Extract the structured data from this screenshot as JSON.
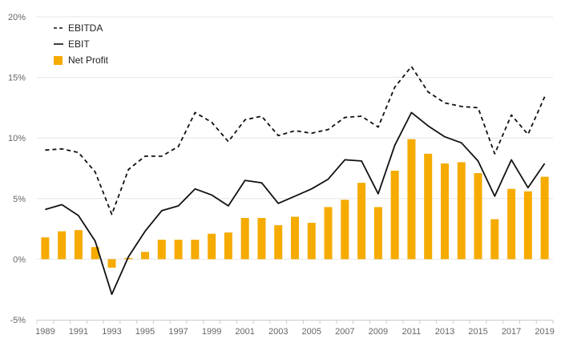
{
  "chart_data": {
    "type": "bar",
    "x": [
      1989,
      1990,
      1991,
      1992,
      1993,
      1994,
      1995,
      1996,
      1997,
      1998,
      1999,
      2000,
      2001,
      2002,
      2003,
      2004,
      2005,
      2006,
      2007,
      2008,
      2009,
      2010,
      2011,
      2012,
      2013,
      2014,
      2015,
      2016,
      2017,
      2018,
      2019
    ],
    "x_tick_labels": [
      "1989",
      "1991",
      "1993",
      "1995",
      "1997",
      "1999",
      "2001",
      "2003",
      "2005",
      "2007",
      "2009",
      "2011",
      "2013",
      "2015",
      "2017",
      "2019"
    ],
    "y_tick_labels": [
      "20%",
      "15%",
      "10%",
      "5%",
      "0%",
      "-5%"
    ],
    "y_ticks": [
      20,
      15,
      10,
      5,
      0,
      -5
    ],
    "ylim": [
      -5,
      20
    ],
    "y_unit": "%",
    "grid": true,
    "legend_position": "top-left",
    "series": [
      {
        "name": "EBITDA",
        "type": "line",
        "style": "dashed",
        "color": "#111111",
        "values": [
          9.0,
          9.1,
          8.8,
          7.2,
          3.7,
          7.4,
          8.5,
          8.5,
          9.3,
          12.1,
          11.3,
          9.7,
          11.5,
          11.8,
          10.2,
          10.6,
          10.4,
          10.7,
          11.7,
          11.8,
          10.9,
          14.2,
          15.9,
          13.8,
          12.9,
          12.6,
          12.5,
          8.7,
          11.9,
          10.3,
          13.4
        ]
      },
      {
        "name": "EBIT",
        "type": "line",
        "style": "solid",
        "color": "#111111",
        "values": [
          4.1,
          4.5,
          3.6,
          1.5,
          -2.9,
          0.2,
          2.3,
          4.0,
          4.4,
          5.8,
          5.3,
          4.4,
          6.5,
          6.3,
          4.6,
          5.2,
          5.8,
          6.6,
          8.2,
          8.1,
          5.4,
          9.4,
          12.1,
          11.0,
          10.1,
          9.6,
          8.1,
          5.2,
          8.2,
          5.9,
          7.9
        ]
      },
      {
        "name": "Net Profit",
        "type": "bar",
        "color": "#f5ab00",
        "values": [
          1.8,
          2.3,
          2.4,
          1.0,
          -0.7,
          0.1,
          0.6,
          1.6,
          1.6,
          1.6,
          2.1,
          2.2,
          3.4,
          3.4,
          2.8,
          3.5,
          3.0,
          4.3,
          4.9,
          6.3,
          4.3,
          7.3,
          9.9,
          8.7,
          7.9,
          8.0,
          7.1,
          3.3,
          5.8,
          5.6,
          6.8
        ]
      }
    ]
  }
}
